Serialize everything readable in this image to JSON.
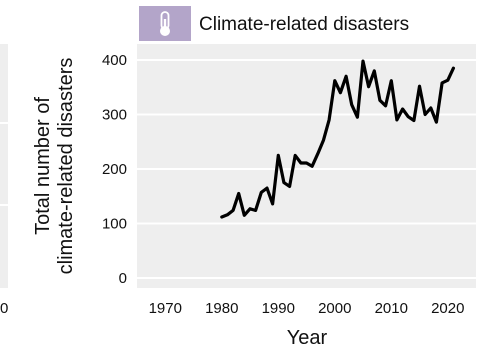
{
  "chart_data": {
    "type": "line",
    "legend": {
      "position": "top",
      "icon": "thermometer-icon",
      "label": "Climate-related disasters"
    },
    "xlabel": "Year",
    "ylabel_line1": "Total number of",
    "ylabel_line2": "climate-related disasters",
    "xlim": [
      1965,
      2025
    ],
    "ylim": [
      0,
      420
    ],
    "xticks": [
      1970,
      1980,
      1990,
      2000,
      2010,
      2020
    ],
    "yticks": [
      0,
      100,
      200,
      300,
      400
    ],
    "grid": "horizontal",
    "left_panel_fragment": {
      "tick_label": "0"
    },
    "series": [
      {
        "color": "#000000",
        "x": [
          1980,
          1981,
          1982,
          1983,
          1984,
          1985,
          1986,
          1987,
          1988,
          1989,
          1990,
          1991,
          1992,
          1993,
          1994,
          1995,
          1996,
          1997,
          1998,
          1999,
          2000,
          2001,
          2002,
          2003,
          2004,
          2005,
          2006,
          2007,
          2008,
          2009,
          2010,
          2011,
          2012,
          2013,
          2014,
          2015,
          2016,
          2017,
          2018,
          2019,
          2020,
          2021
        ],
        "y": [
          112,
          116,
          124,
          155,
          115,
          127,
          124,
          157,
          165,
          136,
          225,
          175,
          168,
          225,
          211,
          211,
          205,
          228,
          253,
          290,
          362,
          340,
          370,
          318,
          295,
          398,
          351,
          380,
          326,
          316,
          362,
          290,
          310,
          296,
          289,
          352,
          300,
          312,
          286,
          358,
          363,
          385
        ]
      }
    ],
    "colors": {
      "legend_swatch": "#b3a5c9",
      "plot_background": "#eeeeee",
      "gridline": "#ffffff",
      "line": "#000000"
    }
  }
}
